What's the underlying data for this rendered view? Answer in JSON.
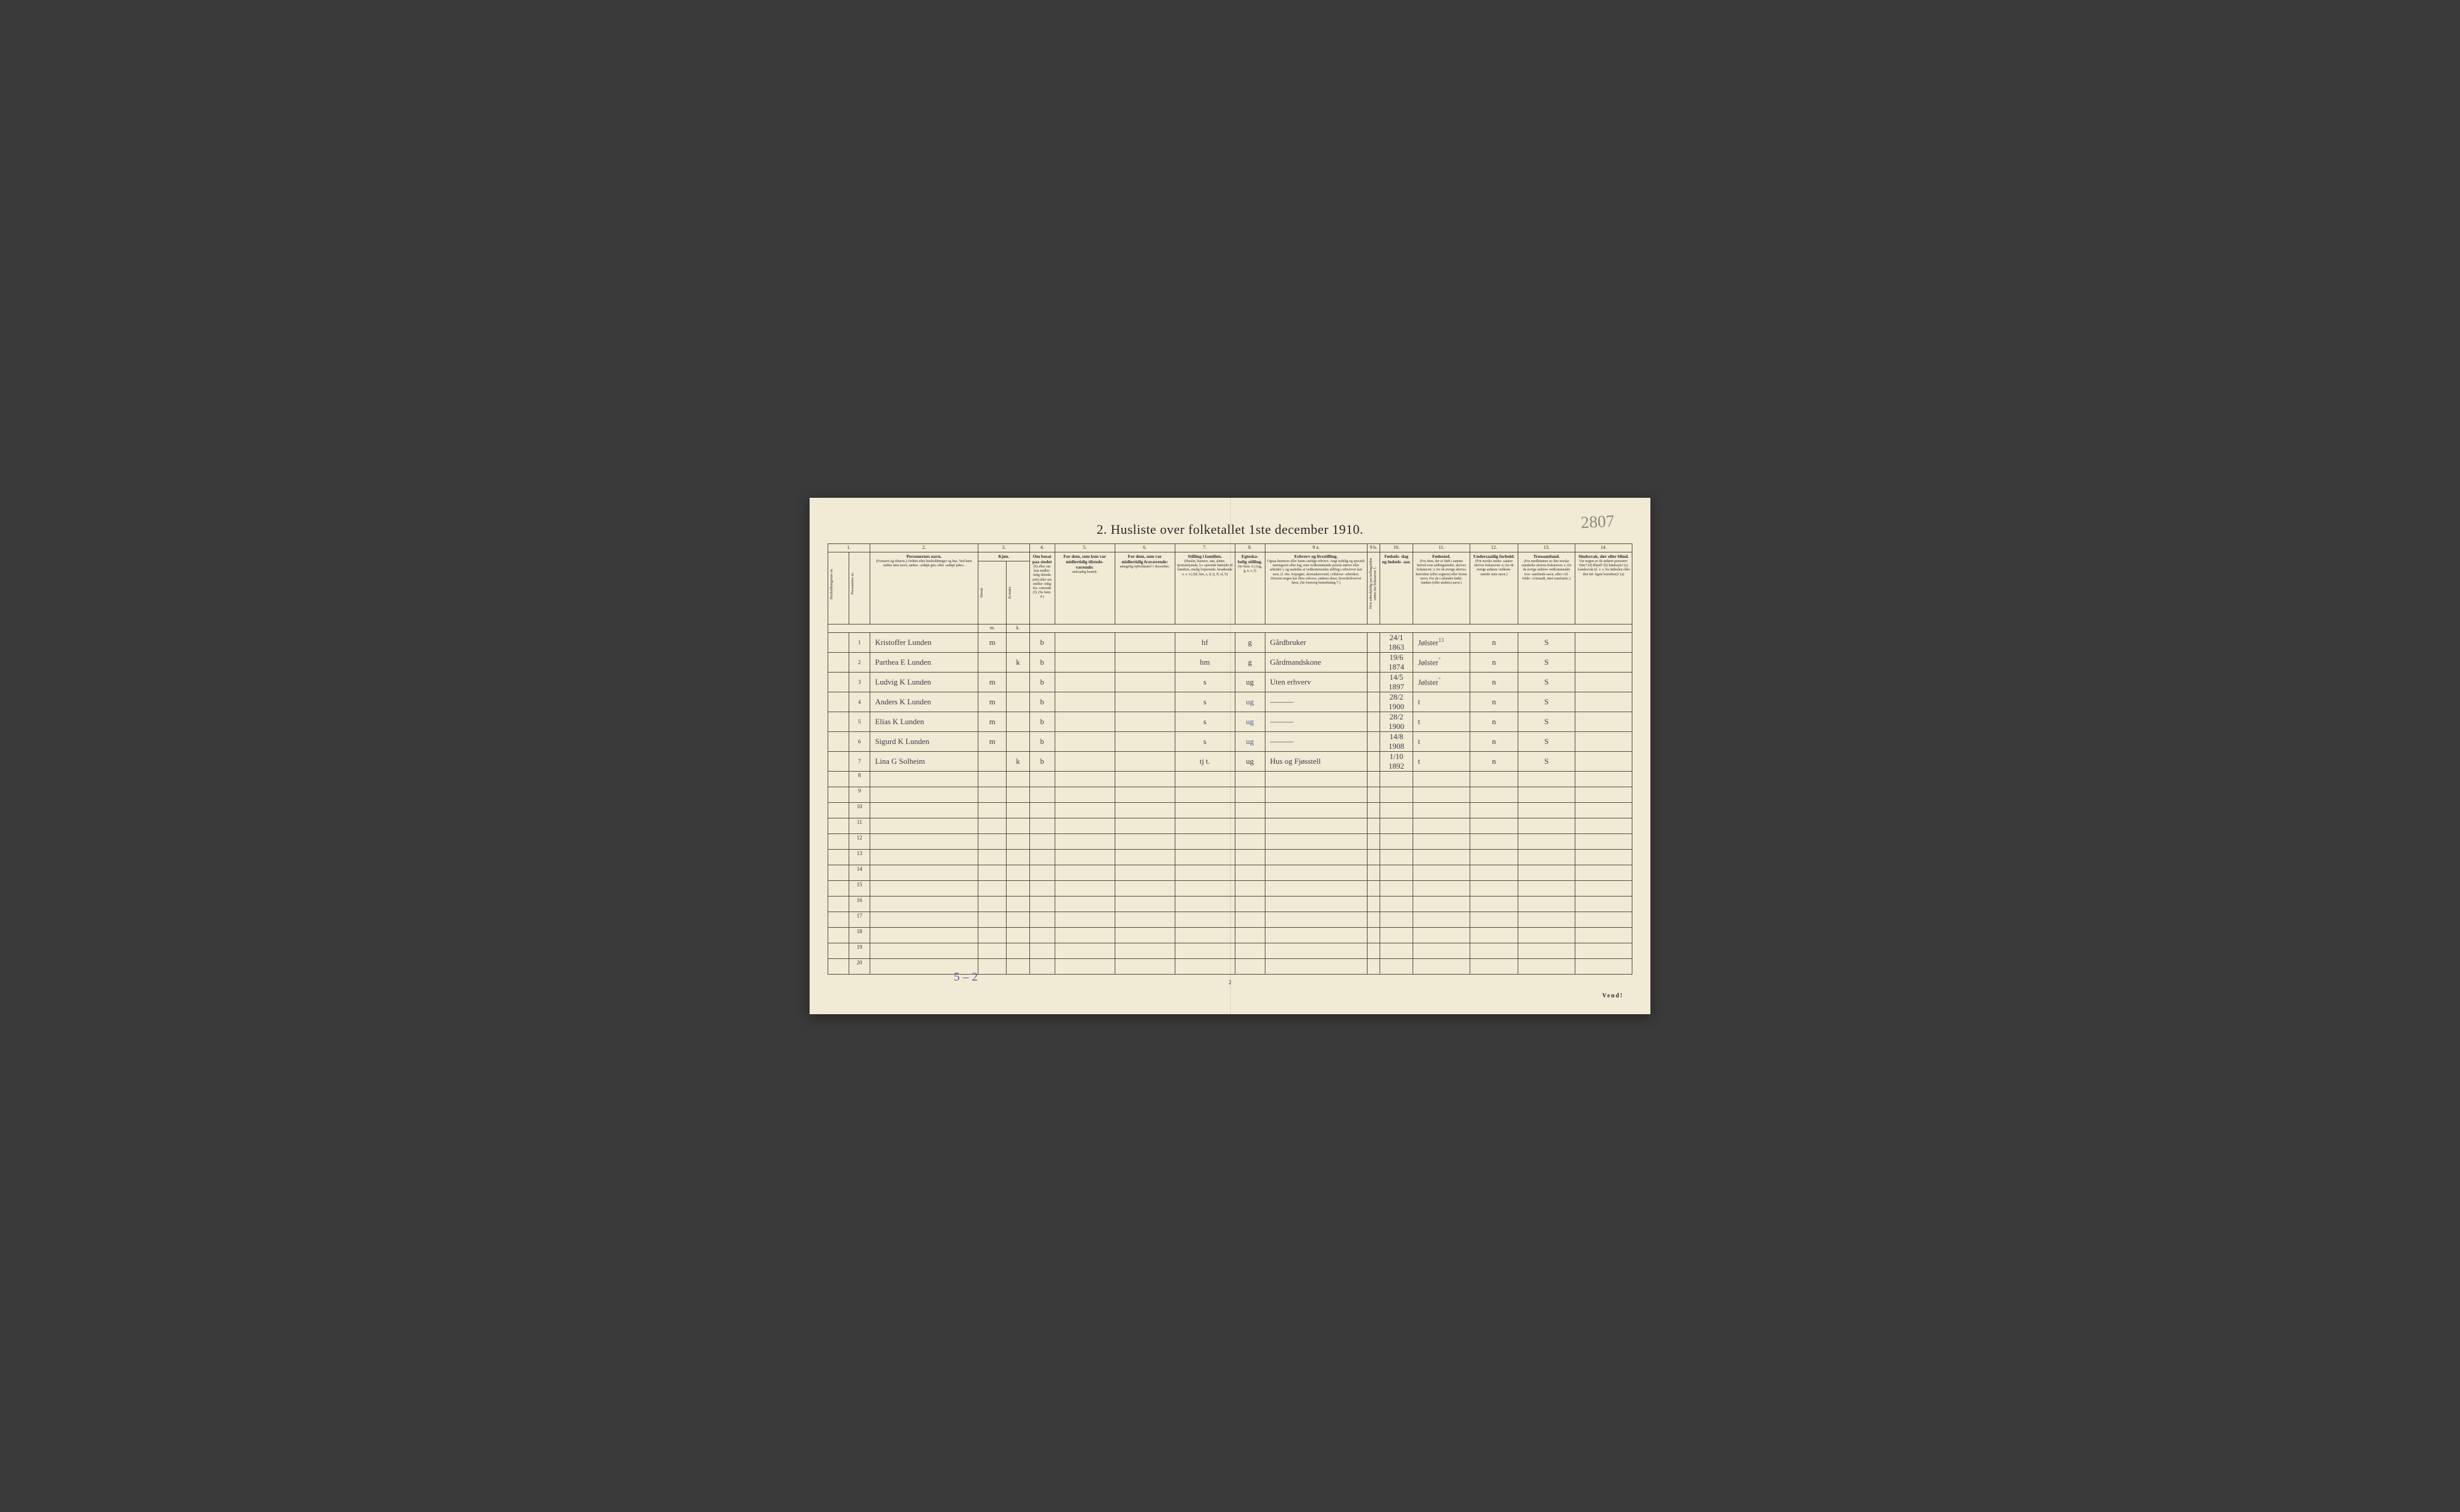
{
  "page": {
    "title": "2.  Husliste over folketallet 1ste december 1910.",
    "corner_annotation": "2807",
    "footer_annotation": "5 – 2",
    "page_number": "2",
    "vend": "Vend!",
    "background_color": "#f1ead4",
    "border_color": "#4a4a3a",
    "ink_color": "#3a3a4a",
    "blue_ink_color": "#4a5a9a"
  },
  "columns": {
    "numbers": [
      "1.",
      "2.",
      "3.",
      "4.",
      "5.",
      "6.",
      "7.",
      "8.",
      "9 a.",
      "9 b.",
      "10.",
      "11.",
      "12.",
      "13.",
      "14."
    ],
    "headers": [
      {
        "main": "Husholdningernes nr.",
        "sub": ""
      },
      {
        "main": "Personernes nr.",
        "sub": ""
      },
      {
        "main": "Personernes navn.",
        "sub": "(Fornavn og tilnavn.)\nOrdnet efter husholdninger og hus.\nVed barn endnu uten navn, sættes: «udøpt gut»\neller «udøpt pike»."
      },
      {
        "main": "Kjøn.",
        "sub": "Mænd."
      },
      {
        "main": "",
        "sub": "Kvinder."
      },
      {
        "main": "Om bosat\npaa stedet",
        "sub": "(b) eller om\nkun midler-\ntidig tilstede\n(mt) eller\nom midler-\ntidig fra-\nværende (f).\n(Se bem. 4.)"
      },
      {
        "main": "For dem, som kun var\nmidlertidig tilstede-\nværende:",
        "sub": "sedvanlig bosted."
      },
      {
        "main": "For dem, som var\nmidlertidig\nfraværende:",
        "sub": "antagelig opholdssted\n1 december."
      },
      {
        "main": "Stilling i familien.",
        "sub": "(Husfar, husmor, søn,\ndatter, tjenestetyende, lo-\nsjerende hørende til familien,\nenslig losjerende, besøkende\no. s. v.)\n(hf, hm, s, d, tj, fl,\nel, b)"
      },
      {
        "main": "Egteska-\nbelig\nstilling.",
        "sub": "(Se bem. 6.)\n(ug, g,\ne, s, f)"
      },
      {
        "main": "Erhverv og livsstilling.",
        "sub": "Ogsaa husmors eller barns særlige erhverv.\nAngi tydelig og specielt næringsvei eller fag, som\nvedkommende person utøver eller arbeider i,\nog saaledes at vedkommendes stilling i erhvervet kan\nsees, (f. eks. forpagter, skomakersvend, cellulose-\narbeider). Dersom nogen har flere erhverv,\nanføres disse, hovederhvervet først.\n(Se forøvrig bemerkning 7.)"
      },
      {
        "main": "",
        "sub": "Hvis arbeidsledig\npaa tællingstiden sættes\nher bokstaven: l."
      },
      {
        "main": "Fødsels-\ndag\nog\nfødsels-\naar.",
        "sub": ""
      },
      {
        "main": "Fødested.",
        "sub": "(For dem, der er født\ni samme herred som\ntællingsstedet,\nskrives bokstaven: t;\nfor de øvrige skrives\nherredets (eller sognets)\neller byens navn.\nFor de i utlandet fødte:\nlandets (eller stedets)\nnavn.)"
      },
      {
        "main": "Undersaatlig\nforhold.",
        "sub": "(For norske under-\nsaatter skrives\nbokstaven: n;\nfor de øvrige\nanføres vedkom-\nmende stats navn.)"
      },
      {
        "main": "Trossamfund.",
        "sub": "(For medlemmer av\nden norske statskirke\nskrives bokstaven: s;\nfor de øvrige anføres\nvedkommende tros-\nsamfunds navn, eller i til-\nfelde: «Uttraadt, intet\nsamfund».)"
      },
      {
        "main": "Sindssvak, døv\neller blind.",
        "sub": "Var nogen av de anførte\npersoner:\nDøv?      (d)\nBlind?    (b)\nSindssyk? (s)\nAandssvak (d. v. s. fra\nfødselen eller den tid-\nligste barndom)? (a)"
      }
    ],
    "sub_headers": [
      "m.",
      "k."
    ]
  },
  "rows": [
    {
      "num": "1",
      "name": "Kristoffer Lunden",
      "m": "m",
      "k": "",
      "b": "b",
      "c5": "",
      "c6": "",
      "c7": "hf",
      "c8": "g",
      "c9a": "Gårdbruker",
      "c9b": "",
      "c10": "24/1 1863",
      "c11": "Jølster",
      "c11_sup": "13",
      "c12": "n",
      "c13": "S",
      "c14": ""
    },
    {
      "num": "2",
      "name": "Parthea E Lunden",
      "m": "",
      "k": "k",
      "b": "b",
      "c5": "",
      "c6": "",
      "c7": "hm",
      "c8": "g",
      "c9a": "Gårdmandskone",
      "c9b": "",
      "c10": "19/6 1874",
      "c11": "Jølster",
      "c11_sup": "\"",
      "c12": "n",
      "c13": "S",
      "c14": ""
    },
    {
      "num": "3",
      "name": "Ludvig K Lunden",
      "m": "m",
      "k": "",
      "b": "b",
      "c5": "",
      "c6": "",
      "c7": "s",
      "c8": "ug",
      "c9a": "Uten erhverv",
      "c9b": "",
      "c10": "14/5 1897",
      "c11": "Jølster",
      "c11_sup": "\"",
      "c12": "n",
      "c13": "S",
      "c14": ""
    },
    {
      "num": "4",
      "name": "Anders K Lunden",
      "m": "m",
      "k": "",
      "b": "b",
      "c5": "",
      "c6": "",
      "c7": "s",
      "c8": "ug",
      "c8_blue": true,
      "c9a": "———",
      "c9b": "",
      "c10": "28/2 1900",
      "c11": "t",
      "c11_sup": "",
      "c12": "n",
      "c13": "S",
      "c14": ""
    },
    {
      "num": "5",
      "name": "Elias K Lunden",
      "m": "m",
      "k": "",
      "b": "b",
      "c5": "",
      "c6": "",
      "c7": "s",
      "c8": "ug",
      "c8_blue": true,
      "c9a": "———",
      "c9b": "",
      "c10": "28/2 1900",
      "c11": "t",
      "c11_sup": "",
      "c12": "n",
      "c13": "S",
      "c14": ""
    },
    {
      "num": "6",
      "name": "Sigurd K Lunden",
      "m": "m",
      "k": "",
      "b": "b",
      "c5": "",
      "c6": "",
      "c7": "s",
      "c8": "ug",
      "c8_blue": true,
      "c9a": "———",
      "c9b": "",
      "c10": "14/8 1908",
      "c11": "t",
      "c11_sup": "",
      "c12": "n",
      "c13": "S",
      "c14": ""
    },
    {
      "num": "7",
      "name": "Lina G Solheim",
      "m": "",
      "k": "k",
      "b": "b",
      "c5": "",
      "c6": "",
      "c7": "tj  t.",
      "c8": "ug",
      "c9a": "Hus og Fjøsstell",
      "c9b": "",
      "c10": "1/10 1892",
      "c11": "t",
      "c11_sup": "",
      "c12": "n",
      "c13": "S",
      "c14": ""
    }
  ],
  "empty_rows": [
    "8",
    "9",
    "10",
    "11",
    "12",
    "13",
    "14",
    "15",
    "16",
    "17",
    "18",
    "19",
    "20"
  ]
}
